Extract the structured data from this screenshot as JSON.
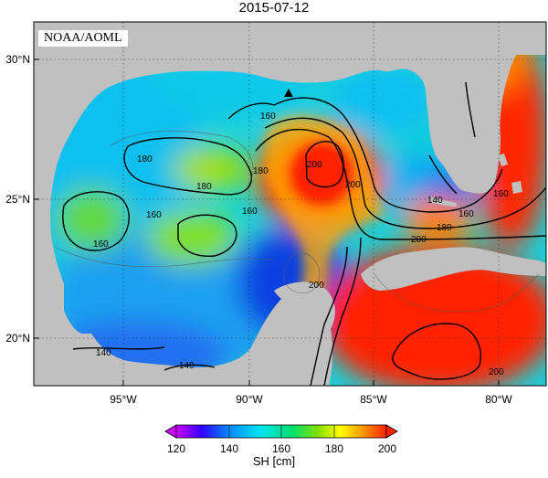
{
  "title": "2015-07-12",
  "credit": "NOAA/AOML",
  "lon_ticks": [
    "95°W",
    "90°W",
    "85°W",
    "80°W"
  ],
  "lat_ticks": [
    "30°N",
    "25°N",
    "20°N"
  ],
  "contour_labels": [
    "160",
    "160",
    "180",
    "180",
    "160",
    "160",
    "200",
    "200",
    "180",
    "160",
    "140",
    "160",
    "180",
    "200",
    "140",
    "140",
    "200",
    "200"
  ],
  "colorbar": {
    "label": "SH [cm]",
    "ticks": [
      "120",
      "140",
      "160",
      "180",
      "200"
    ],
    "min": 120,
    "max": 200,
    "colors": [
      "#cc00ff",
      "#3300ff",
      "#0088ff",
      "#00e6f0",
      "#00e070",
      "#88e000",
      "#ffff00",
      "#ffa000",
      "#ff2000"
    ]
  },
  "colors": {
    "land": "#c0c0c0",
    "warm": "#ff2000",
    "cool": "#1e6cf0",
    "mid": "#10d8c8"
  },
  "markers": [
    "triangle"
  ]
}
